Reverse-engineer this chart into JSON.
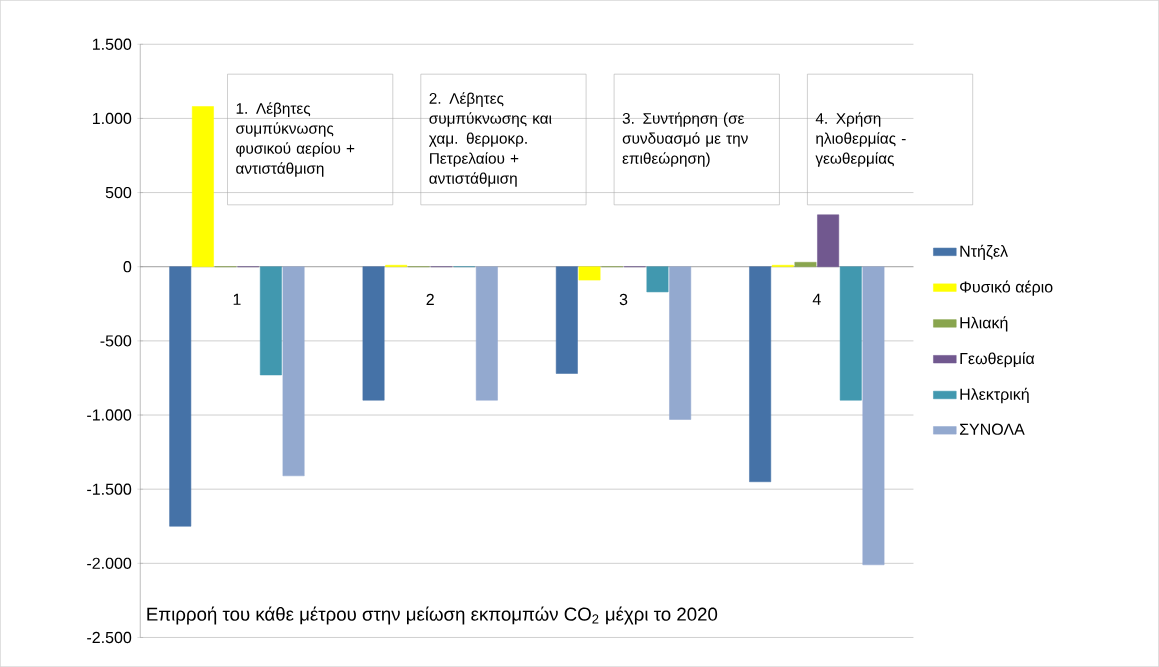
{
  "chart_data": {
    "type": "bar",
    "title": "Επιρροή του κάθε μέτρου στην μείωση εκπομπών CO$_{2}$ μέχρι το 2020",
    "categories": [
      "1",
      "2",
      "3",
      "4"
    ],
    "series": [
      {
        "name": "Ντήζελ",
        "color": "#4572a7",
        "values": [
          -1750,
          -900,
          -720,
          -1450
        ]
      },
      {
        "name": "Φυσικό αέριο",
        "color": "#ffff00",
        "values": [
          1080,
          10,
          -90,
          10
        ]
      },
      {
        "name": "Ηλιακή",
        "color": "#89a54e",
        "values": [
          0,
          0,
          0,
          30
        ]
      },
      {
        "name": "Γεωθερμία",
        "color": "#71588f",
        "values": [
          0,
          0,
          0,
          350
        ]
      },
      {
        "name": "Ηλεκτρική",
        "color": "#4198af",
        "values": [
          -730,
          0,
          -170,
          -900
        ]
      },
      {
        "name": "ΣΥΝΟΛΑ",
        "color": "#93a9cf",
        "values": [
          -1410,
          -900,
          -1030,
          -2010
        ]
      }
    ],
    "ylim": [
      -2500,
      1500
    ],
    "yticks": [
      {
        "value": -2500,
        "label": "-2.500"
      },
      {
        "value": -2000,
        "label": "-2.000"
      },
      {
        "value": -1500,
        "label": "-1.500"
      },
      {
        "value": -1000,
        "label": "-1.000"
      },
      -500,
      0,
      500,
      {
        "value": 1000,
        "label": "1.000"
      },
      {
        "value": 1500,
        "label": "1.500"
      }
    ],
    "grid": "y",
    "legend": "right",
    "annotations": [
      "1. Λέβητες συμπύκνωσης φυσικού αερίου + αντιστάθμιση",
      "2. Λέβητες συμπύκνωσης και χαμ. θερμοκρ. Πετρελαίου + αντιστάθμιση",
      "3. Συντήρηση (σε συνδυασμό με την επιθεώρηση)",
      "4. Χρήση ηλιοθερμίας -γεωθερμίας"
    ]
  }
}
